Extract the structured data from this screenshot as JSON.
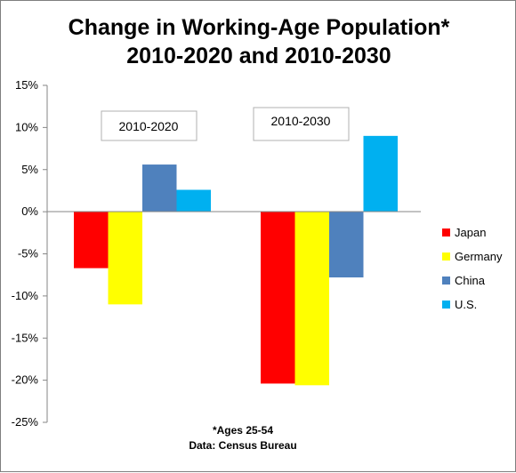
{
  "chart_data": {
    "type": "bar",
    "title_lines": [
      "Change in Working-Age Population*",
      "2010-2020 and 2010-2030"
    ],
    "categories": [
      "2010-2020",
      "2010-2030"
    ],
    "series": [
      {
        "name": "Japan",
        "color": "#ff0000",
        "values": [
          -6.7,
          -20.4
        ]
      },
      {
        "name": "Germany",
        "color": "#ffff00",
        "values": [
          -11.0,
          -20.6
        ]
      },
      {
        "name": "China",
        "color": "#4f81bd",
        "values": [
          5.6,
          -7.8
        ]
      },
      {
        "name": "U.S.",
        "color": "#00b0f0",
        "values": [
          2.6,
          9.0
        ]
      }
    ],
    "ylim": [
      -25,
      15
    ],
    "y_ticks": [
      "15%",
      "10%",
      "5%",
      "0%",
      "-5%",
      "-10%",
      "-15%",
      "-20%",
      "-25%"
    ],
    "grid": false,
    "legend_position": "right",
    "annotations": [
      "*Ages 25-54",
      "Data: Census Bureau"
    ]
  }
}
